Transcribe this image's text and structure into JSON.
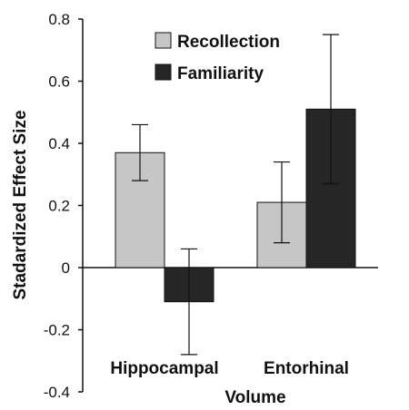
{
  "chart_data": {
    "type": "bar",
    "title": "",
    "xlabel": "Volume",
    "ylabel": "Stadardized Effect Size",
    "ylim": [
      -0.4,
      0.8
    ],
    "yticks": [
      -0.4,
      -0.2,
      0,
      0.2,
      0.4,
      0.6,
      0.8
    ],
    "ytick_labels": [
      "-0.4",
      "-0.2",
      "0",
      "0.2",
      "0.4",
      "0.6",
      "0.8"
    ],
    "categories": [
      "Hippocampal",
      "Entorhinal"
    ],
    "series": [
      {
        "name": "Recollection",
        "color": "#c6c6c6",
        "values": [
          0.37,
          0.21
        ],
        "error_low": [
          0.28,
          0.08
        ],
        "error_high": [
          0.46,
          0.34
        ]
      },
      {
        "name": "Familiarity",
        "color": "#262626",
        "values": [
          -0.11,
          0.51
        ],
        "error_low": [
          -0.28,
          0.27
        ],
        "error_high": [
          0.06,
          0.75
        ]
      }
    ],
    "legend_position": "top-center",
    "grid": false
  }
}
